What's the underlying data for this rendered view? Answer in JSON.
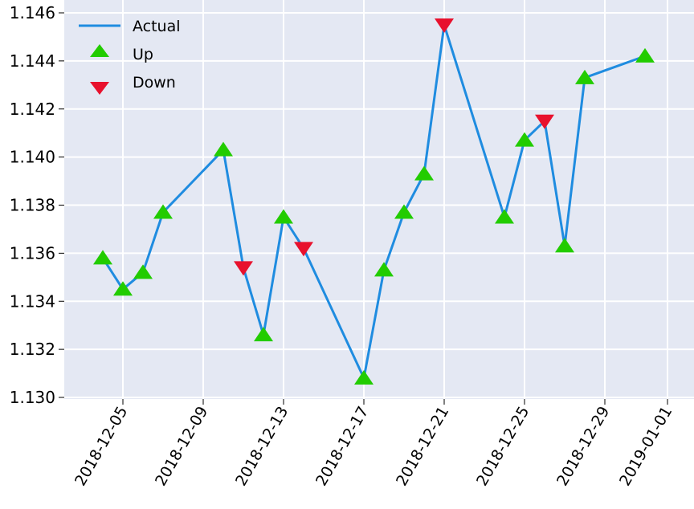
{
  "chart_data": {
    "type": "line",
    "title": "",
    "xlabel": "",
    "ylabel": "",
    "x_ticks": [
      "2018-12-05",
      "2018-12-09",
      "2018-12-13",
      "2018-12-17",
      "2018-12-21",
      "2018-12-25",
      "2018-12-29",
      "2019-01-01"
    ],
    "y_ticks": [
      "1.130",
      "1.132",
      "1.134",
      "1.136",
      "1.138",
      "1.140",
      "1.142",
      "1.144",
      "1.146"
    ],
    "xlim": [
      "2018-12-02",
      "2019-01-02"
    ],
    "ylim": [
      1.13,
      1.146
    ],
    "grid": true,
    "legend_position": "top-left",
    "series": [
      {
        "name": "Actual",
        "marker": "line",
        "color": "#1f8ce0",
        "x": [
          "2018-12-04",
          "2018-12-05",
          "2018-12-06",
          "2018-12-07",
          "2018-12-10",
          "2018-12-11",
          "2018-12-12",
          "2018-12-13",
          "2018-12-14",
          "2018-12-17",
          "2018-12-18",
          "2018-12-19",
          "2018-12-20",
          "2018-12-21",
          "2018-12-24",
          "2018-12-25",
          "2018-12-26",
          "2018-12-27",
          "2018-12-28",
          "2018-12-31"
        ],
        "values": [
          1.1358,
          1.1345,
          1.1352,
          1.1377,
          1.1403,
          1.1354,
          1.1326,
          1.1375,
          1.1362,
          1.1308,
          1.1353,
          1.1377,
          1.1393,
          1.1455,
          1.1375,
          1.1407,
          1.1415,
          1.1363,
          1.1433,
          1.1442
        ]
      },
      {
        "name": "Up",
        "marker": "triangle-up",
        "color": "#22cc00",
        "x": [
          "2018-12-04",
          "2018-12-05",
          "2018-12-06",
          "2018-12-07",
          "2018-12-10",
          "2018-12-12",
          "2018-12-13",
          "2018-12-17",
          "2018-12-18",
          "2018-12-19",
          "2018-12-20",
          "2018-12-24",
          "2018-12-25",
          "2018-12-27",
          "2018-12-28",
          "2018-12-31"
        ],
        "values": [
          1.1358,
          1.1345,
          1.1352,
          1.1377,
          1.1403,
          1.1326,
          1.1375,
          1.1308,
          1.1353,
          1.1377,
          1.1393,
          1.1375,
          1.1407,
          1.1363,
          1.1433,
          1.1442
        ]
      },
      {
        "name": "Down",
        "marker": "triangle-down",
        "color": "#e8112d",
        "x": [
          "2018-12-11",
          "2018-12-14",
          "2018-12-21",
          "2018-12-26"
        ],
        "values": [
          1.1354,
          1.1362,
          1.1455,
          1.1415
        ]
      }
    ]
  }
}
